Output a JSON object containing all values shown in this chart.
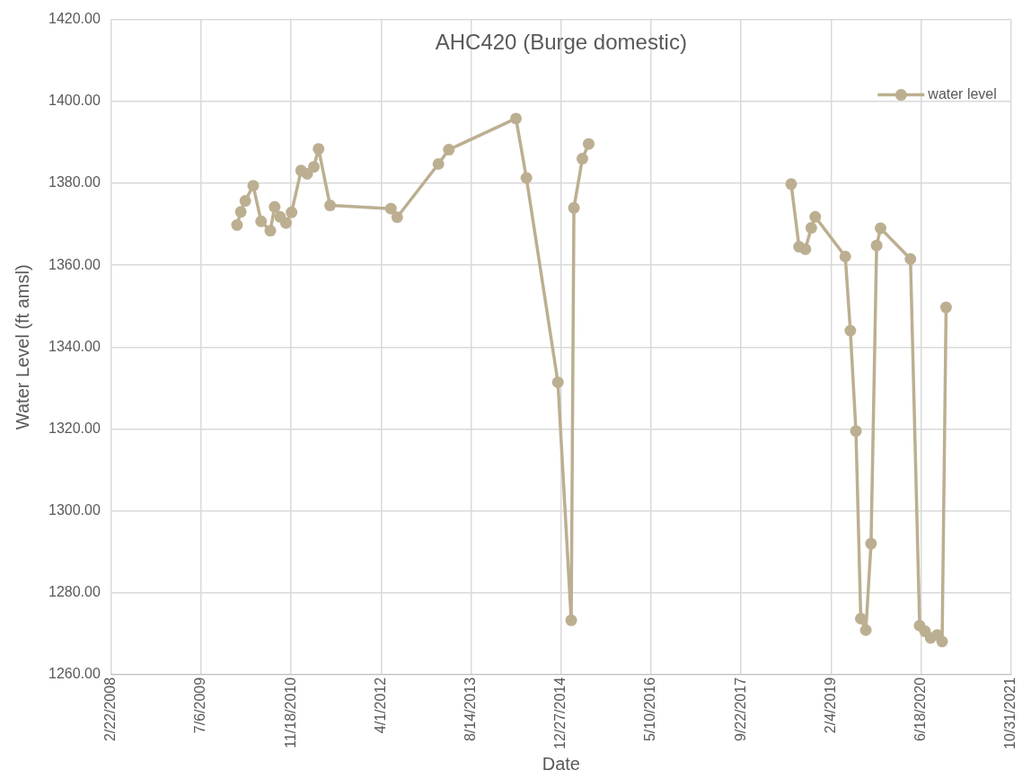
{
  "chart_data": {
    "type": "line",
    "title": "AHC420 (Burge domestic)",
    "xlabel": "Date",
    "ylabel": "Water Level (ft amsl)",
    "x": [
      "2010-01-21",
      "2010-02-11",
      "2010-03-08",
      "2010-04-21",
      "2010-06-04",
      "2010-07-25",
      "2010-08-18",
      "2010-09-17",
      "2010-10-20",
      "2010-11-20",
      "2011-01-12",
      "2011-02-15",
      "2011-03-24",
      "2011-04-19",
      "2011-06-22",
      "2012-05-25",
      "2012-06-29",
      "2013-02-13",
      "2013-04-12",
      "2014-04-20",
      "2014-06-17",
      "2014-12-09",
      "2015-02-21",
      "2015-03-08",
      "2015-04-24",
      "2015-05-29",
      "2016-12-01",
      "2018-06-27",
      "2018-08-10",
      "2018-09-14",
      "2018-10-17",
      "2018-11-08",
      "2019-04-24",
      "2019-05-22",
      "2019-06-22",
      "2019-07-19",
      "2019-08-16",
      "2019-09-14",
      "2019-10-15",
      "2019-11-06",
      "2020-04-20",
      "2020-06-10",
      "2020-07-10",
      "2020-08-10",
      "2020-09-16",
      "2020-10-13",
      "2020-11-04"
    ],
    "series": [
      {
        "name": "water level",
        "color": "#bcaf91",
        "values": [
          1369.8,
          1373.0,
          1375.7,
          1379.4,
          1370.7,
          1368.4,
          1374.2,
          1371.8,
          1370.3,
          1372.9,
          1383.1,
          1382.3,
          1384.0,
          1388.4,
          1374.6,
          1373.8,
          1371.7,
          1384.7,
          1388.2,
          1395.8,
          1381.3,
          1331.4,
          1273.3,
          1374.0,
          1386.0,
          1389.6,
          null,
          1379.8,
          1364.5,
          1363.9,
          1369.1,
          1371.8,
          1362.1,
          1344.0,
          1319.5,
          1273.7,
          1270.9,
          1292.0,
          1364.8,
          1369.0,
          1361.5,
          1272.0,
          1270.6,
          1269.0,
          1269.7,
          1268.1,
          1349.7
        ]
      }
    ],
    "xlim": [
      "2008-02-22",
      "2021-10-31"
    ],
    "xticks": [
      {
        "value": "2008-02-22",
        "label": "2/22/2008"
      },
      {
        "value": "2009-07-06",
        "label": "7/6/2009"
      },
      {
        "value": "2010-11-18",
        "label": "11/18/2010"
      },
      {
        "value": "2012-04-01",
        "label": "4/1/2012"
      },
      {
        "value": "2013-08-14",
        "label": "8/14/2013"
      },
      {
        "value": "2014-12-27",
        "label": "12/27/2014"
      },
      {
        "value": "2016-05-10",
        "label": "5/10/2016"
      },
      {
        "value": "2017-09-22",
        "label": "9/22/2017"
      },
      {
        "value": "2019-02-04",
        "label": "2/4/2019"
      },
      {
        "value": "2020-06-18",
        "label": "6/18/2020"
      },
      {
        "value": "2021-10-31",
        "label": "10/31/2021"
      }
    ],
    "ylim": [
      1260,
      1420
    ],
    "yticks": [
      {
        "value": 1260,
        "label": "1260.00"
      },
      {
        "value": 1280,
        "label": "1280.00"
      },
      {
        "value": 1300,
        "label": "1300.00"
      },
      {
        "value": 1320,
        "label": "1320.00"
      },
      {
        "value": 1340,
        "label": "1340.00"
      },
      {
        "value": 1360,
        "label": "1360.00"
      },
      {
        "value": 1380,
        "label": "1380.00"
      },
      {
        "value": 1400,
        "label": "1400.00"
      },
      {
        "value": 1420,
        "label": "1420.00"
      }
    ],
    "grid": true,
    "legend": "top right",
    "marker": "circle",
    "line_style": "solid"
  }
}
